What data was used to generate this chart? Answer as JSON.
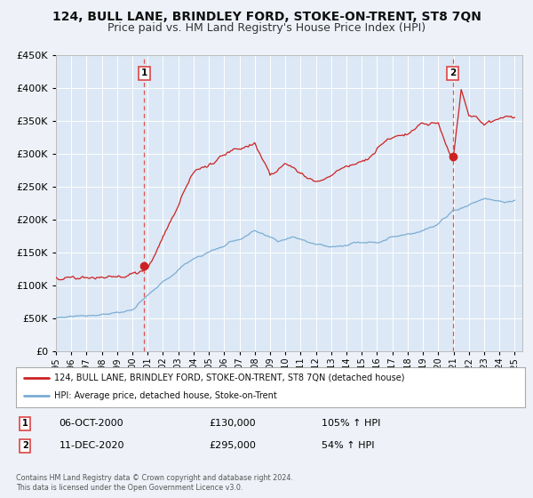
{
  "title": "124, BULL LANE, BRINDLEY FORD, STOKE-ON-TRENT, ST8 7QN",
  "subtitle": "Price paid vs. HM Land Registry's House Price Index (HPI)",
  "legend_line1": "124, BULL LANE, BRINDLEY FORD, STOKE-ON-TRENT, ST8 7QN (detached house)",
  "legend_line2": "HPI: Average price, detached house, Stoke-on-Trent",
  "annotation1_label": "1",
  "annotation1_date": "06-OCT-2000",
  "annotation1_price": "£130,000",
  "annotation1_hpi": "105% ↑ HPI",
  "annotation2_label": "2",
  "annotation2_date": "11-DEC-2020",
  "annotation2_price": "£295,000",
  "annotation2_hpi": "54% ↑ HPI",
  "footnote": "Contains HM Land Registry data © Crown copyright and database right 2024.\nThis data is licensed under the Open Government Licence v3.0.",
  "hpi_color": "#7aadd4",
  "price_color": "#cc2222",
  "marker_color": "#cc2222",
  "dashed_line_color": "#dd4444",
  "background_color": "#eef2f8",
  "plot_bg_color": "#dce8f5",
  "ylim": [
    0,
    450000
  ],
  "yticks": [
    0,
    50000,
    100000,
    150000,
    200000,
    250000,
    300000,
    350000,
    400000,
    450000
  ],
  "xlim_start": 1995.0,
  "xlim_end": 2025.5,
  "marker1_x": 2000.77,
  "marker1_y": 130000,
  "marker2_x": 2020.95,
  "marker2_y": 295000,
  "title_fontsize": 10,
  "subtitle_fontsize": 9
}
